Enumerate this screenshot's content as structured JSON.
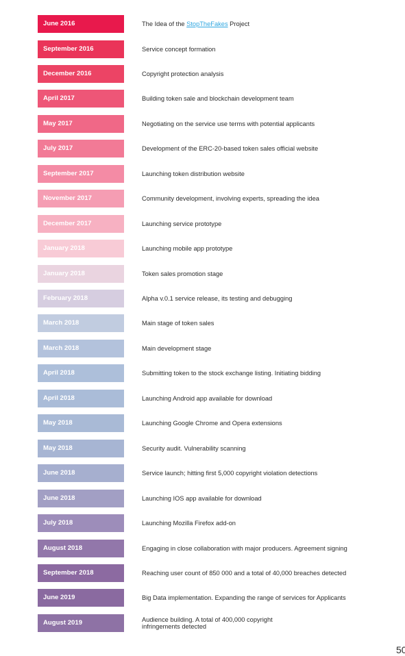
{
  "timeline": [
    {
      "date": "June 2016",
      "color": "#e8194c",
      "segments": [
        {
          "text": "The Idea of the "
        },
        {
          "text": "StopTheFakes",
          "link": true
        },
        {
          "text": " Project"
        }
      ]
    },
    {
      "date": "September 2016",
      "color": "#ea3459",
      "text": "Service concept formation"
    },
    {
      "date": "December 2016",
      "color": "#ec4465",
      "text": "Copyright protection analysis"
    },
    {
      "date": "April 2017",
      "color": "#ee5677",
      "text": "Building token sale and blockchain development team"
    },
    {
      "date": "May 2017",
      "color": "#f06887",
      "text": "Negotiating on the service use terms with potential applicants"
    },
    {
      "date": "July 2017",
      "color": "#f27a96",
      "text": "Development of the ERC-20-based token sales official website"
    },
    {
      "date": "September 2017",
      "color": "#f48ba5",
      "text": "Launching token distribution website"
    },
    {
      "date": "November 2017",
      "color": "#f59db3",
      "text": "Community development, involving experts, spreading the idea"
    },
    {
      "date": "December 2017",
      "color": "#f7b1c2",
      "text": "Launching service prototype"
    },
    {
      "date": "January 2018",
      "color": "#f8cbd6",
      "text": "Launching mobile app prototype"
    },
    {
      "date": "January 2018",
      "color": "#ead4e0",
      "text": "Token sales promotion stage"
    },
    {
      "date": "February 2018",
      "color": "#d6cde0",
      "text": "Alpha v.0.1 service release, its testing and debugging"
    },
    {
      "date": "March 2018",
      "color": "#c1cce0",
      "text": "Main stage of token sales"
    },
    {
      "date": "March 2018",
      "color": "#b3c2dc",
      "text": "Main development stage"
    },
    {
      "date": "April 2018",
      "color": "#adbfda",
      "text": "Submitting token to the stock exchange listing. Initiating bidding"
    },
    {
      "date": "April 2018",
      "color": "#aabcd8",
      "text": "Launching Android app available for download"
    },
    {
      "date": "May 2018",
      "color": "#a9bad6",
      "text": "Launching Google Chrome and Opera extensions"
    },
    {
      "date": "May 2018",
      "color": "#a7b5d3",
      "text": "Security audit. Vulnerability scanning"
    },
    {
      "date": "June 2018",
      "color": "#a6afcf",
      "text": "Service launch; hitting first 5,000 copyright violation detections"
    },
    {
      "date": "June 2018",
      "color": "#a29fc4",
      "text": "Launching IOS app available for download"
    },
    {
      "date": "July 2018",
      "color": "#9d8dba",
      "text": "Launching Mozilla Firefox add-on"
    },
    {
      "date": "August 2018",
      "color": "#9277aa",
      "text": "Engaging in close collaboration with major producers. Agreement signing"
    },
    {
      "date": "September 2018",
      "color": "#8c6aa1",
      "text": "Reaching user count of 850 000 and a total of 40,000 breaches detected"
    },
    {
      "date": "June 2019",
      "color": "#8a6aa0",
      "text": "Big Data implementation. Expanding the range of services for Applicants"
    },
    {
      "date": "August 2019",
      "color": "#8e72a5",
      "text": "Audience building. A total of 400,000 copyright infringements detected",
      "lines": [
        "Audience building. A total of 400,000 copyright",
        "infringements detected"
      ]
    }
  ],
  "page_number": "50"
}
